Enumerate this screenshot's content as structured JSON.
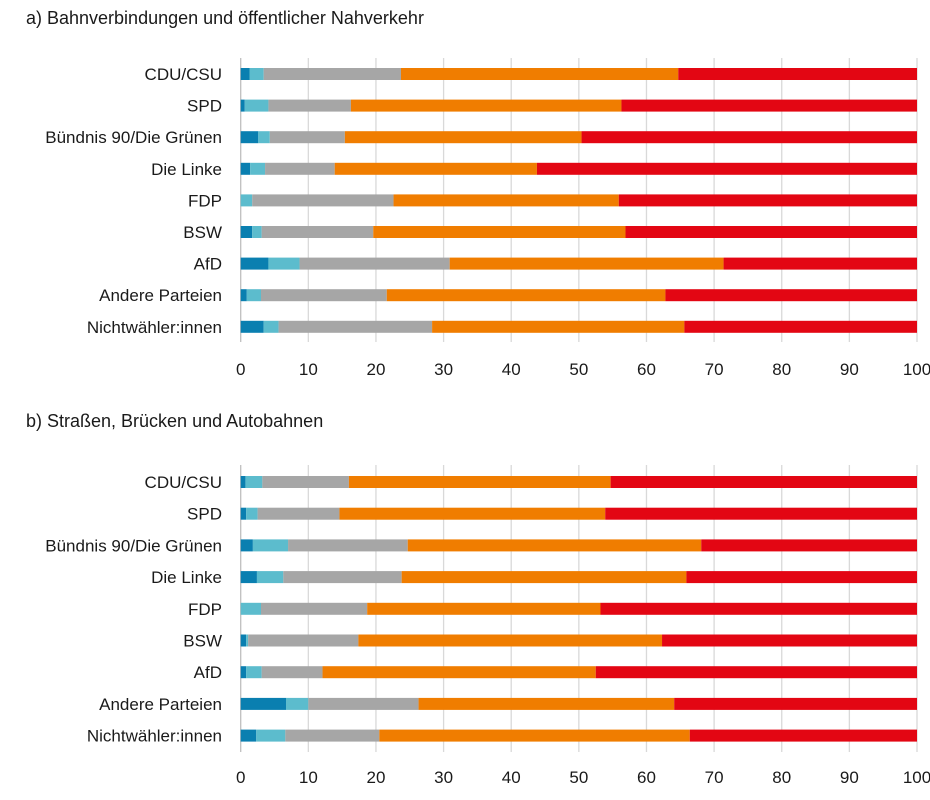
{
  "colors": [
    "#0a7fb0",
    "#5cbccd",
    "#a6a6a6",
    "#f07d00",
    "#e30613"
  ],
  "chart_data": [
    {
      "type": "bar",
      "orientation": "horizontal",
      "stacked": true,
      "title": "a) Bahnverbindungen und öffentlicher Nahverkehr",
      "xlim": [
        0,
        100
      ],
      "xticks": [
        "0",
        "10",
        "20",
        "30",
        "40",
        "50",
        "60",
        "70",
        "80",
        "90",
        "100"
      ],
      "grid": true,
      "categories": [
        "CDU/CSU",
        "SPD",
        "Bündnis 90/Die Grünen",
        "Die Linke",
        "FDP",
        "BSW",
        "AfD",
        "Andere Parteien",
        "Nichtwähler:innen"
      ],
      "series": [
        {
          "name": "segment-1",
          "values": [
            1.3,
            0.6,
            2.6,
            1.4,
            0.0,
            1.7,
            4.1,
            0.9,
            3.4
          ]
        },
        {
          "name": "segment-2",
          "values": [
            2.1,
            3.5,
            1.7,
            2.2,
            1.7,
            1.4,
            4.6,
            2.1,
            2.2
          ]
        },
        {
          "name": "segment-3",
          "values": [
            20.3,
            12.2,
            11.1,
            10.3,
            20.9,
            16.5,
            22.2,
            18.6,
            22.7
          ]
        },
        {
          "name": "segment-4",
          "values": [
            41.0,
            40.0,
            35.0,
            29.9,
            33.3,
            37.3,
            40.5,
            41.2,
            37.3
          ]
        },
        {
          "name": "segment-5",
          "values": [
            35.3,
            43.7,
            49.6,
            56.2,
            44.1,
            43.1,
            28.6,
            37.2,
            34.4
          ]
        }
      ]
    },
    {
      "type": "bar",
      "orientation": "horizontal",
      "stacked": true,
      "title": "b) Straßen, Brücken und Autobahnen",
      "xlim": [
        0,
        100
      ],
      "xticks": [
        "0",
        "10",
        "20",
        "30",
        "40",
        "50",
        "60",
        "70",
        "80",
        "90",
        "100"
      ],
      "grid": true,
      "categories": [
        "CDU/CSU",
        "SPD",
        "Bündnis 90/Die Grünen",
        "Die Linke",
        "FDP",
        "BSW",
        "AfD",
        "Andere Parteien",
        "Nichtwähler:innen"
      ],
      "series": [
        {
          "name": "segment-1",
          "values": [
            0.7,
            0.8,
            1.8,
            2.4,
            0.0,
            0.8,
            0.8,
            6.7,
            2.3
          ]
        },
        {
          "name": "segment-2",
          "values": [
            2.5,
            1.7,
            5.2,
            3.9,
            3.0,
            0.3,
            2.3,
            3.3,
            4.3
          ]
        },
        {
          "name": "segment-3",
          "values": [
            12.8,
            12.1,
            17.7,
            17.5,
            15.7,
            16.3,
            9.0,
            16.3,
            13.9
          ]
        },
        {
          "name": "segment-4",
          "values": [
            38.7,
            39.3,
            43.4,
            42.1,
            34.5,
            44.9,
            40.4,
            37.8,
            45.9
          ]
        },
        {
          "name": "segment-5",
          "values": [
            45.3,
            46.1,
            31.9,
            34.1,
            46.8,
            37.7,
            47.5,
            35.9,
            33.6
          ]
        }
      ]
    }
  ]
}
